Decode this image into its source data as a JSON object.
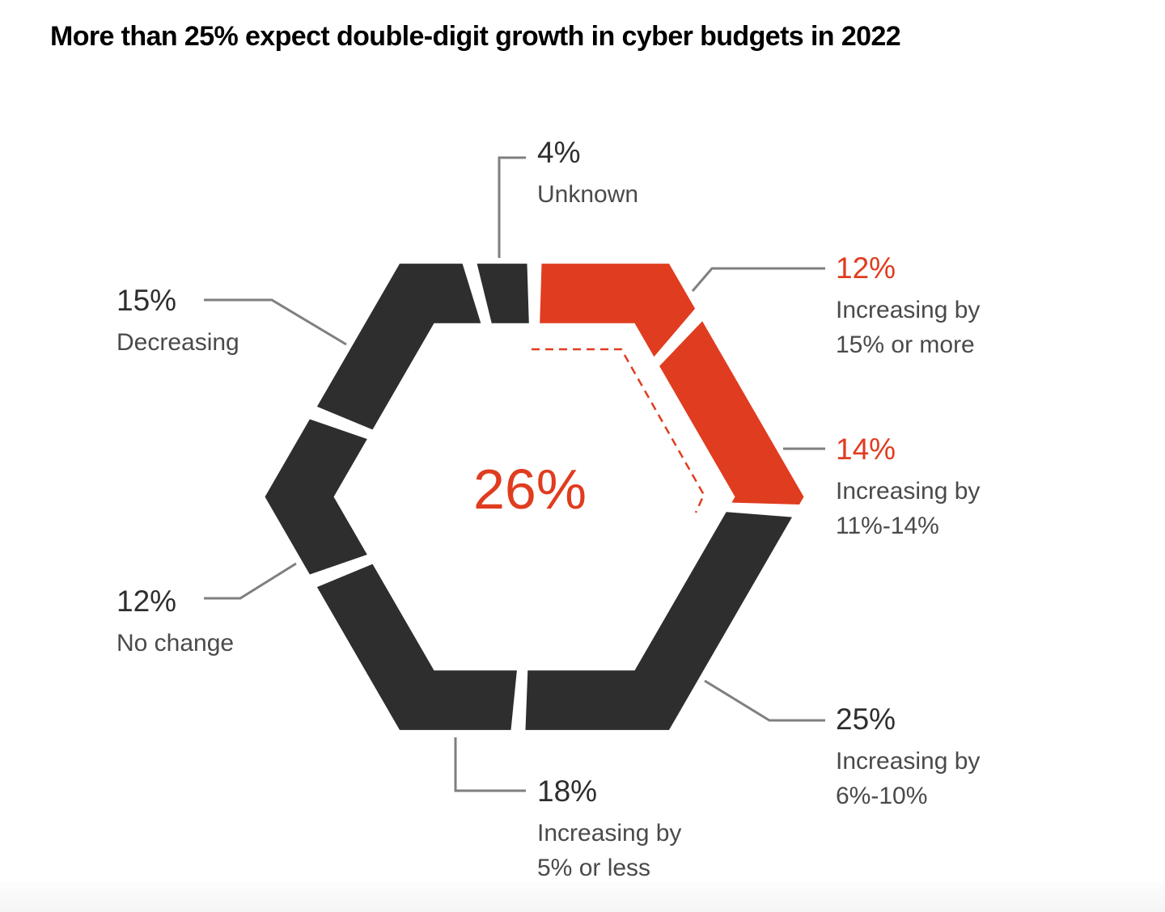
{
  "chart_data": {
    "type": "pie",
    "shape": "hexagon-donut",
    "title": "More than 25% expect double-digit growth in cyber budgets in 2022",
    "center_label": "26%",
    "highlight_color": "#e03c1f",
    "base_color": "#2e2e2e",
    "slices": [
      {
        "value": 12,
        "label": "12%",
        "description": [
          "Increasing by",
          "15% or more"
        ],
        "highlight": true
      },
      {
        "value": 14,
        "label": "14%",
        "description": [
          "Increasing by",
          "11%-14%"
        ],
        "highlight": true
      },
      {
        "value": 25,
        "label": "25%",
        "description": [
          "Increasing by",
          "6%-10%"
        ],
        "highlight": false
      },
      {
        "value": 18,
        "label": "18%",
        "description": [
          "Increasing by",
          "5% or less"
        ],
        "highlight": false
      },
      {
        "value": 12,
        "label": "12%",
        "description": [
          "No change"
        ],
        "highlight": false
      },
      {
        "value": 15,
        "label": "15%",
        "description": [
          "Decreasing"
        ],
        "highlight": false
      },
      {
        "value": 4,
        "label": "4%",
        "description": [
          "Unknown"
        ],
        "highlight": false
      }
    ]
  }
}
